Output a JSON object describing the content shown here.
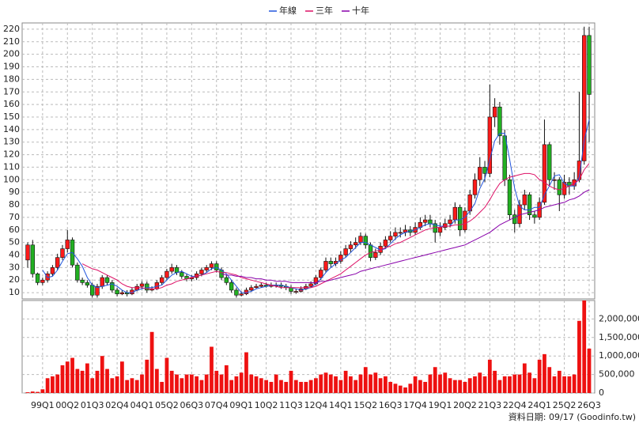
{
  "chart_data": {
    "type": "candlestick",
    "legend": [
      "年線",
      "三年",
      "十年"
    ],
    "footer": "資料日期: 09/17  (Goodinfo.tw)",
    "categories": [
      null,
      null,
      null,
      "99Q1",
      null,
      null,
      null,
      null,
      "00Q2",
      null,
      null,
      null,
      null,
      "01Q3",
      null,
      null,
      null,
      null,
      "02Q4",
      null,
      null,
      null,
      null,
      "04Q1",
      null,
      null,
      null,
      null,
      "05Q2",
      null,
      null,
      null,
      null,
      "06Q3",
      null,
      null,
      null,
      null,
      "07Q4",
      null,
      null,
      null,
      null,
      "09Q1",
      null,
      null,
      null,
      null,
      "10Q2",
      null,
      null,
      null,
      null,
      "11Q3",
      null,
      null,
      null,
      null,
      "12Q4",
      null,
      null,
      null,
      null,
      "14Q1",
      null,
      null,
      null,
      null,
      "15Q2",
      null,
      null,
      null,
      null,
      "16Q3",
      null,
      null,
      null,
      null,
      "17Q4",
      null,
      null,
      null,
      null,
      "19Q1",
      null,
      null,
      null,
      null,
      "20Q2",
      null,
      null,
      null,
      null,
      "21Q3",
      null,
      null,
      null,
      null,
      "22Q4",
      null,
      null,
      null,
      null,
      "24Q1",
      null,
      null,
      null,
      null,
      "25Q2",
      null,
      null,
      null,
      null,
      "26Q3"
    ],
    "open": [
      36,
      48,
      25,
      18,
      20,
      25,
      30,
      38,
      45,
      52,
      32,
      20,
      18,
      16,
      8,
      15,
      22,
      18,
      12,
      9,
      10,
      9,
      12,
      15,
      17,
      12,
      13,
      18,
      22,
      27,
      30,
      26,
      23,
      21,
      22,
      25,
      28,
      30,
      33,
      28,
      22,
      18,
      12,
      8,
      9,
      12,
      14,
      15,
      16,
      15,
      16,
      16,
      15,
      14,
      11,
      11,
      13,
      15,
      17,
      22,
      28,
      35,
      33,
      35,
      40,
      45,
      48,
      50,
      55,
      48,
      38,
      42,
      47,
      52,
      55,
      58,
      58,
      60,
      58,
      62,
      66,
      68,
      65,
      58,
      62,
      65,
      68,
      78,
      60,
      75,
      88,
      100,
      110,
      105,
      150,
      158,
      135,
      100,
      72,
      65,
      80,
      88,
      72,
      70,
      82,
      128,
      100,
      100,
      88,
      98,
      95,
      100,
      115,
      215
    ],
    "high": [
      50,
      52,
      26,
      22,
      27,
      32,
      41,
      48,
      60,
      54,
      34,
      22,
      20,
      18,
      17,
      24,
      24,
      20,
      14,
      12,
      12,
      14,
      17,
      19,
      19,
      15,
      20,
      24,
      29,
      33,
      32,
      28,
      25,
      24,
      27,
      30,
      32,
      35,
      35,
      30,
      24,
      20,
      14,
      11,
      14,
      16,
      17,
      18,
      18,
      18,
      18,
      18,
      17,
      16,
      13,
      15,
      17,
      19,
      24,
      30,
      38,
      38,
      38,
      43,
      48,
      51,
      54,
      58,
      57,
      50,
      45,
      50,
      55,
      59,
      62,
      62,
      64,
      63,
      66,
      70,
      72,
      72,
      68,
      66,
      69,
      72,
      82,
      80,
      78,
      92,
      105,
      118,
      115,
      176,
      165,
      162,
      140,
      104,
      76,
      84,
      92,
      90,
      75,
      86,
      148,
      130,
      106,
      102,
      104,
      102,
      106,
      170,
      222,
      222
    ],
    "low": [
      30,
      22,
      16,
      16,
      18,
      23,
      28,
      36,
      42,
      30,
      18,
      16,
      14,
      6,
      6,
      13,
      16,
      10,
      7,
      8,
      7,
      8,
      11,
      13,
      10,
      11,
      12,
      16,
      20,
      25,
      24,
      21,
      19,
      19,
      20,
      23,
      26,
      28,
      26,
      20,
      16,
      10,
      6,
      7,
      8,
      11,
      13,
      14,
      14,
      14,
      14,
      13,
      12,
      9,
      9,
      10,
      12,
      14,
      16,
      20,
      26,
      30,
      31,
      33,
      38,
      42,
      45,
      48,
      45,
      35,
      36,
      40,
      45,
      50,
      52,
      54,
      55,
      55,
      56,
      60,
      63,
      62,
      50,
      55,
      60,
      62,
      65,
      55,
      58,
      72,
      85,
      95,
      98,
      102,
      142,
      128,
      95,
      68,
      58,
      62,
      76,
      68,
      65,
      68,
      80,
      95,
      92,
      75,
      85,
      88,
      92,
      98,
      112,
      130
    ],
    "close": [
      48,
      25,
      18,
      20,
      25,
      30,
      38,
      45,
      52,
      32,
      20,
      18,
      16,
      8,
      15,
      22,
      18,
      12,
      9,
      10,
      9,
      12,
      15,
      17,
      12,
      13,
      18,
      22,
      27,
      30,
      26,
      23,
      21,
      22,
      25,
      28,
      30,
      33,
      28,
      22,
      18,
      12,
      8,
      9,
      12,
      14,
      15,
      16,
      15,
      16,
      16,
      15,
      14,
      11,
      11,
      13,
      15,
      17,
      22,
      28,
      35,
      33,
      35,
      40,
      45,
      48,
      50,
      55,
      48,
      38,
      42,
      47,
      52,
      55,
      58,
      58,
      60,
      58,
      62,
      66,
      68,
      65,
      58,
      62,
      65,
      68,
      78,
      60,
      75,
      88,
      100,
      110,
      105,
      150,
      158,
      135,
      100,
      72,
      65,
      80,
      88,
      72,
      70,
      82,
      128,
      100,
      100,
      88,
      98,
      95,
      100,
      115,
      215,
      168
    ],
    "up_color": "#ff1a1a",
    "down_color": "#22b022",
    "series": [
      {
        "name": "年線",
        "color": "#2255dd",
        "values": [
          null,
          null,
          null,
          28,
          22,
          23,
          28,
          35,
          41,
          42,
          37,
          31,
          22,
          16,
          14,
          15,
          16,
          17,
          15,
          12,
          10,
          10,
          12,
          13,
          14,
          14,
          15,
          16,
          20,
          24,
          26,
          27,
          25,
          23,
          23,
          24,
          26,
          29,
          30,
          28,
          25,
          20,
          15,
          10,
          10,
          11,
          13,
          14,
          15,
          16,
          16,
          16,
          15,
          14,
          13,
          12,
          13,
          14,
          17,
          21,
          26,
          30,
          33,
          36,
          38,
          42,
          46,
          50,
          50,
          48,
          46,
          44,
          45,
          49,
          53,
          56,
          58,
          59,
          60,
          62,
          64,
          65,
          64,
          63,
          63,
          63,
          68,
          68,
          70,
          75,
          81,
          93,
          101,
          116,
          131,
          137,
          137,
          116,
          93,
          79,
          76,
          76,
          78,
          78,
          88,
          95,
          103,
          104,
          97,
          95,
          95,
          102,
          131,
          148
        ]
      },
      {
        "name": "三年",
        "color": "#dd1166",
        "values": [
          null,
          null,
          null,
          null,
          null,
          null,
          null,
          null,
          null,
          null,
          null,
          33,
          31,
          29,
          28,
          26,
          24,
          22,
          20,
          17,
          15,
          14,
          14,
          14,
          13,
          13,
          13,
          14,
          16,
          17,
          19,
          20,
          21,
          22,
          23,
          24,
          25,
          26,
          27,
          26,
          26,
          25,
          24,
          22,
          21,
          20,
          19,
          18,
          17,
          16,
          15,
          14,
          14,
          14,
          14,
          14,
          14,
          14,
          15,
          17,
          19,
          21,
          23,
          25,
          28,
          31,
          34,
          37,
          40,
          42,
          43,
          44,
          46,
          47,
          49,
          50,
          52,
          54,
          56,
          58,
          60,
          61,
          62,
          62,
          63,
          63,
          64,
          64,
          65,
          67,
          70,
          74,
          78,
          84,
          91,
          97,
          100,
          102,
          103,
          104,
          105,
          105,
          104,
          100,
          98,
          95,
          93,
          92,
          93,
          95,
          97,
          100,
          108,
          113
        ]
      },
      {
        "name": "十年",
        "color": "#8800aa",
        "values": [
          null,
          null,
          null,
          null,
          null,
          null,
          null,
          null,
          null,
          null,
          null,
          null,
          null,
          null,
          null,
          null,
          null,
          null,
          null,
          null,
          null,
          null,
          null,
          null,
          null,
          null,
          null,
          null,
          null,
          null,
          null,
          null,
          null,
          null,
          null,
          null,
          null,
          null,
          null,
          25,
          24,
          24,
          23,
          23,
          22,
          22,
          21,
          21,
          20,
          20,
          19,
          19,
          19,
          18,
          18,
          18,
          18,
          18,
          18,
          19,
          19,
          20,
          21,
          22,
          23,
          24,
          25,
          27,
          28,
          29,
          30,
          31,
          32,
          33,
          34,
          35,
          36,
          37,
          38,
          39,
          40,
          41,
          42,
          43,
          44,
          45,
          46,
          47,
          48,
          50,
          52,
          54,
          56,
          58,
          61,
          64,
          66,
          68,
          70,
          72,
          73,
          74,
          75,
          76,
          78,
          79,
          80,
          81,
          82,
          84,
          85,
          87,
          90,
          92
        ]
      }
    ],
    "ylim": [
      5,
      225
    ],
    "yticks": [
      10,
      20,
      30,
      40,
      50,
      60,
      70,
      80,
      90,
      100,
      110,
      120,
      130,
      140,
      150,
      160,
      170,
      180,
      190,
      200,
      210,
      220
    ],
    "grid": true,
    "volume": {
      "color": "#ee1111",
      "ylim": [
        0,
        2500000
      ],
      "yticks": [
        0,
        {
          "value": 500000,
          "label": "500,000"
        },
        {
          "value": 1000000,
          "label": "1,000,000"
        },
        {
          "value": 1500000,
          "label": "1,500,000"
        },
        {
          "value": 2000000,
          "label": "2,000,000"
        }
      ],
      "values": [
        20000,
        40000,
        30000,
        100000,
        400000,
        450000,
        500000,
        750000,
        850000,
        950000,
        650000,
        600000,
        800000,
        400000,
        600000,
        1000000,
        650000,
        400000,
        450000,
        850000,
        350000,
        400000,
        350000,
        500000,
        900000,
        1650000,
        650000,
        300000,
        950000,
        600000,
        500000,
        400000,
        500000,
        500000,
        450000,
        350000,
        500000,
        1250000,
        600000,
        500000,
        750000,
        350000,
        450000,
        550000,
        1100000,
        500000,
        450000,
        400000,
        350000,
        300000,
        500000,
        350000,
        300000,
        600000,
        350000,
        300000,
        300000,
        350000,
        400000,
        500000,
        550000,
        500000,
        450000,
        350000,
        600000,
        450000,
        350000,
        500000,
        700000,
        500000,
        550000,
        400000,
        450000,
        300000,
        250000,
        200000,
        150000,
        250000,
        450000,
        350000,
        300000,
        500000,
        700000,
        500000,
        550000,
        400000,
        350000,
        350000,
        300000,
        400000,
        450000,
        550000,
        450000,
        900000,
        600000,
        350000,
        450000,
        450000,
        500000,
        500000,
        800000,
        550000,
        400000,
        900000,
        1050000,
        700000,
        450000,
        600000,
        450000,
        450000,
        500000,
        1950000,
        2500000,
        1200000
      ]
    }
  }
}
